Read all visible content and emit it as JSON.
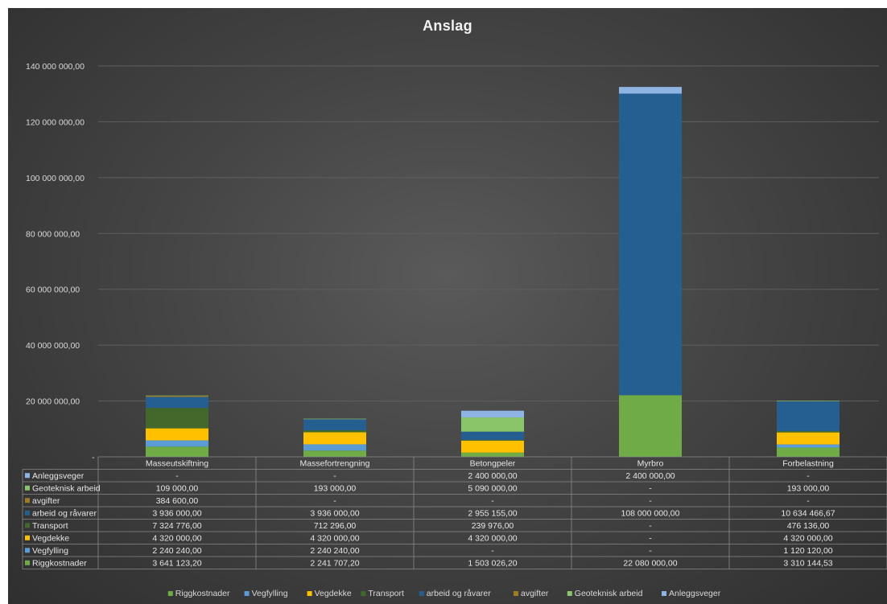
{
  "chart_data": {
    "type": "bar",
    "stacked": true,
    "title": "Anslag",
    "categories": [
      "Masseutskiftning",
      "Massefortrengning",
      "Betongpeler",
      "Myrbro",
      "Forbelastning"
    ],
    "ylim": [
      0,
      140000000
    ],
    "yticks": [
      0,
      20000000,
      40000000,
      60000000,
      80000000,
      100000000,
      120000000,
      140000000
    ],
    "ytick_labels": [
      "-",
      "20 000 000,00",
      "40 000 000,00",
      "60 000 000,00",
      "80 000 000,00",
      "100 000 000,00",
      "120 000 000,00",
      "140 000 000,00"
    ],
    "grid": true,
    "legend_position": "bottom",
    "data_table": true,
    "series": [
      {
        "name": "Riggkostnader",
        "color": "#6fac46",
        "values": [
          3641123.2,
          2241707.2,
          1503026.2,
          22080000.0,
          3310144.53
        ],
        "labels": [
          "3 641 123,20",
          "2 241 707,20",
          "1 503 026,20",
          "22 080 000,00",
          "3 310 144,53"
        ]
      },
      {
        "name": "Vegfylling",
        "color": "#5b9bd5",
        "values": [
          2240240.0,
          2240240.0,
          0,
          0,
          1120120.0
        ],
        "labels": [
          "2 240 240,00",
          "2 240 240,00",
          "-",
          "-",
          "1 120 120,00"
        ]
      },
      {
        "name": "Vegdekke",
        "color": "#ffc000",
        "values": [
          4320000.0,
          4320000.0,
          4320000.0,
          0,
          4320000.0
        ],
        "labels": [
          "4 320 000,00",
          "4 320 000,00",
          "4 320 000,00",
          "-",
          "4 320 000,00"
        ]
      },
      {
        "name": "Transport",
        "color": "#43682b",
        "values": [
          7324776.0,
          712296.0,
          239976.0,
          0,
          476136.0
        ],
        "labels": [
          "7 324 776,00",
          "712 296,00",
          "239 976,00",
          "-",
          "476 136,00"
        ]
      },
      {
        "name": "arbeid og råvarer",
        "color": "#255e91",
        "values": [
          3936000.0,
          3936000.0,
          2955155.0,
          108000000.0,
          10634466.67
        ],
        "labels": [
          "3 936 000,00",
          "3 936 000,00",
          "2 955 155,00",
          "108 000 000,00",
          "10 634 466,67"
        ]
      },
      {
        "name": "avgifter",
        "color": "#9e7c22",
        "values": [
          384600.0,
          0,
          0,
          0,
          0
        ],
        "labels": [
          "384 600,00",
          "-",
          "-",
          "-",
          "-"
        ]
      },
      {
        "name": "Geoteknisk arbeid",
        "color": "#8bc569",
        "values": [
          109000.0,
          193000.0,
          5090000.0,
          0,
          193000.0
        ],
        "labels": [
          "109 000,00",
          "193 000,00",
          "5 090 000,00",
          "-",
          "193 000,00"
        ]
      },
      {
        "name": "Anleggsveger",
        "color": "#8db4e2",
        "values": [
          0,
          0,
          2400000.0,
          2400000.0,
          0
        ],
        "labels": [
          "-",
          "-",
          "2 400 000,00",
          "2 400 000,00",
          "-"
        ]
      }
    ]
  }
}
